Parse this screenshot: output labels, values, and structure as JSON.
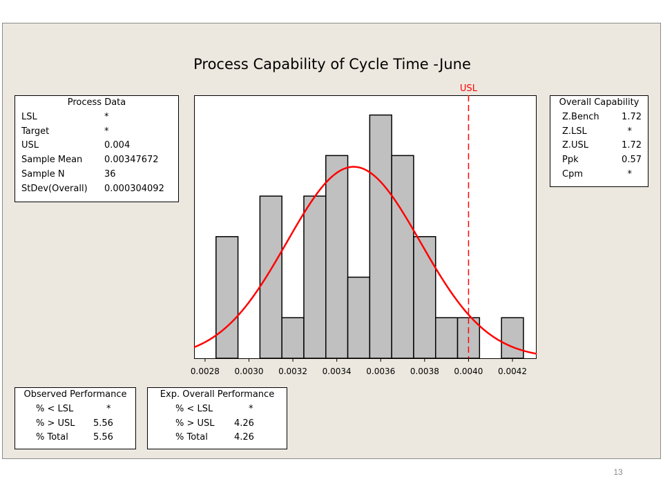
{
  "chart_data": {
    "type": "bar",
    "title": "Process Capability of Cycle Time -June",
    "bin_width": 0.0001,
    "bins": [
      {
        "x0": 0.00285,
        "x1": 0.00295,
        "count": 3
      },
      {
        "x0": 0.00295,
        "x1": 0.00305,
        "count": 0
      },
      {
        "x0": 0.00305,
        "x1": 0.00315,
        "count": 4
      },
      {
        "x0": 0.00315,
        "x1": 0.00325,
        "count": 1
      },
      {
        "x0": 0.00325,
        "x1": 0.00335,
        "count": 4
      },
      {
        "x0": 0.00335,
        "x1": 0.00345,
        "count": 5
      },
      {
        "x0": 0.00345,
        "x1": 0.00355,
        "count": 2
      },
      {
        "x0": 0.00355,
        "x1": 0.00365,
        "count": 6
      },
      {
        "x0": 0.00365,
        "x1": 0.00375,
        "count": 5
      },
      {
        "x0": 0.00375,
        "x1": 0.00385,
        "count": 3
      },
      {
        "x0": 0.00385,
        "x1": 0.00395,
        "count": 1
      },
      {
        "x0": 0.00395,
        "x1": 0.00405,
        "count": 1
      },
      {
        "x0": 0.00405,
        "x1": 0.00415,
        "count": 0
      },
      {
        "x0": 0.00415,
        "x1": 0.00425,
        "count": 1
      }
    ],
    "xlim": [
      0.00275,
      0.00431
    ],
    "ylim": [
      0,
      6.3
    ],
    "x_ticks": [
      "0.0028",
      "0.0030",
      "0.0032",
      "0.0034",
      "0.0036",
      "0.0038",
      "0.0040",
      "0.0042"
    ],
    "x_tick_values": [
      0.0028,
      0.003,
      0.0032,
      0.0034,
      0.0036,
      0.0038,
      0.004,
      0.0042
    ],
    "curve": {
      "mean": 0.00347672,
      "stdev": 0.000304092,
      "n": 36
    },
    "usl": {
      "label": "USL",
      "value": 0.004
    },
    "colors": {
      "bar_fill": "#c0c0c0",
      "bar_stroke": "#000000",
      "curve": "#ff0000",
      "usl_line": "#ff0000"
    }
  },
  "process_data": {
    "heading": "Process Data",
    "rows": [
      {
        "label": "LSL",
        "value": "*"
      },
      {
        "label": "Target",
        "value": "*"
      },
      {
        "label": "USL",
        "value": "0.004"
      },
      {
        "label": "Sample Mean",
        "value": "0.00347672"
      },
      {
        "label": "Sample N",
        "value": "36"
      },
      {
        "label": "StDev(Overall)",
        "value": "0.000304092"
      }
    ]
  },
  "overall_capability": {
    "heading": "Overall Capability",
    "rows": [
      {
        "label": "Z.Bench",
        "value": "1.72"
      },
      {
        "label": "Z.LSL",
        "value": "*"
      },
      {
        "label": "Z.USL",
        "value": "1.72"
      },
      {
        "label": "Ppk",
        "value": "0.57"
      },
      {
        "label": "Cpm",
        "value": "*"
      }
    ]
  },
  "observed_performance": {
    "heading": "Observed Performance",
    "rows": [
      {
        "label": "% < LSL",
        "value": "*"
      },
      {
        "label": "% > USL",
        "value": "5.56"
      },
      {
        "label": "% Total",
        "value": "5.56"
      }
    ]
  },
  "expected_performance": {
    "heading": "Exp. Overall Performance",
    "rows": [
      {
        "label": "% < LSL",
        "value": "*"
      },
      {
        "label": "% > USL",
        "value": "4.26"
      },
      {
        "label": "% Total",
        "value": "4.26"
      }
    ]
  },
  "page_number": "13"
}
